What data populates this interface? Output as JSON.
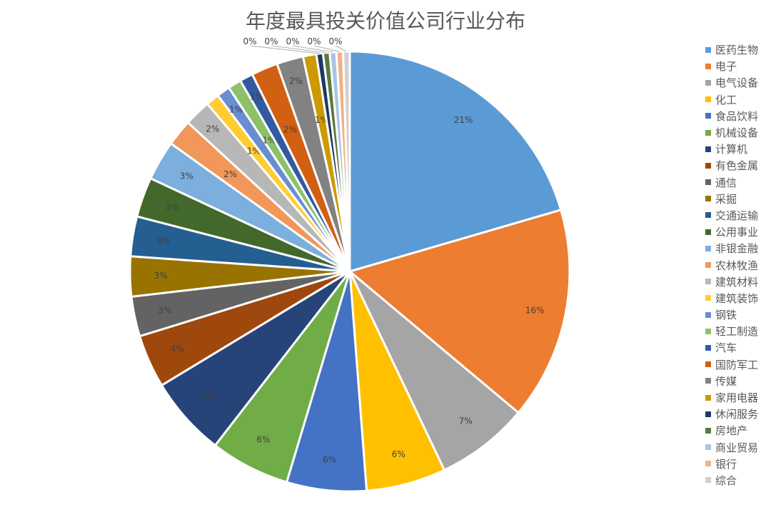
{
  "chart_data": {
    "type": "pie",
    "title": "年度最具投关价值公司行业分布",
    "legend_position": "right",
    "categories": [
      "医药生物",
      "电子",
      "电气设备",
      "化工",
      "食品饮料",
      "机械设备",
      "计算机",
      "有色金属",
      "通信",
      "采掘",
      "交通运输",
      "公用事业",
      "非银金融",
      "农林牧渔",
      "建筑材料",
      "建筑装饰",
      "钢铁",
      "轻工制造",
      "汽车",
      "国防军工",
      "传媒",
      "家用电器",
      "休闲服务",
      "房地产",
      "商业贸易",
      "银行",
      "综合"
    ],
    "values": [
      21,
      16,
      7,
      6,
      6,
      6,
      6,
      4,
      3,
      3,
      3,
      3,
      3,
      2,
      2,
      1,
      1,
      1,
      1,
      2,
      2,
      1,
      0.5,
      0.5,
      0.5,
      0.5,
      0.5
    ],
    "labels": [
      "21%",
      "16%",
      "7%",
      "6%",
      "6%",
      "6%",
      "6%",
      "4%",
      "3%",
      "3%",
      "3%",
      "3%",
      "3%",
      "2%",
      "2%",
      "1%",
      "1%",
      "1%",
      "1%",
      "2%",
      "2%",
      "1%",
      "0%",
      "0%",
      "0%",
      "0%",
      "0%"
    ],
    "colors": [
      "#5B9BD5",
      "#ED7D31",
      "#A5A5A5",
      "#FFC000",
      "#4472C4",
      "#70AD47",
      "#264478",
      "#9E480E",
      "#636363",
      "#997300",
      "#255E91",
      "#43682B",
      "#7CAFDD",
      "#F1975A",
      "#B7B7B7",
      "#FFCD33",
      "#698ED0",
      "#8CC168",
      "#335AA1",
      "#D26012",
      "#828282",
      "#CC9A00",
      "#1F3864",
      "#5B7A3A",
      "#A9C5E3",
      "#F4B183",
      "#D0D0D0"
    ]
  }
}
